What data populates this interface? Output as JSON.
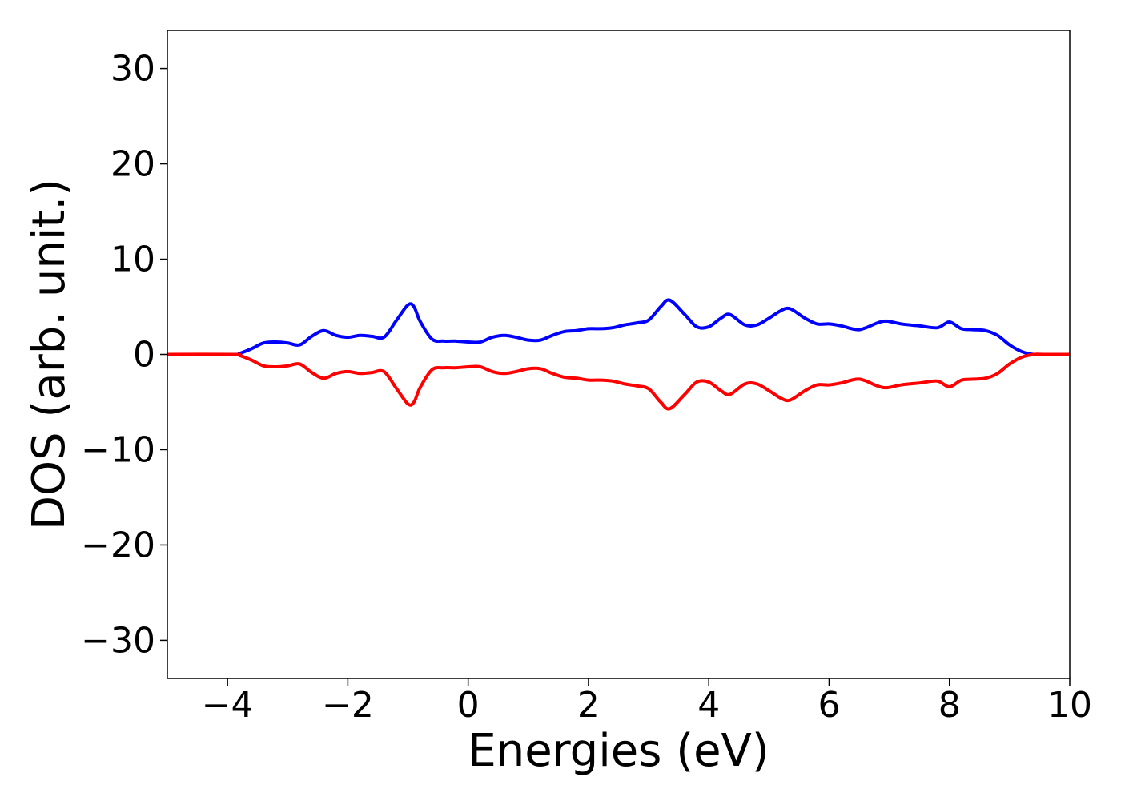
{
  "chart_data": {
    "type": "line",
    "title": "",
    "xlabel": "Energies (eV)",
    "ylabel": "DOS (arb. unit.)",
    "xlim": [
      -5,
      10
    ],
    "ylim": [
      -34,
      34
    ],
    "grid": false,
    "xticks": [
      -4,
      -2,
      0,
      2,
      4,
      6,
      8,
      10
    ],
    "yticks": [
      -30,
      -20,
      -10,
      0,
      10,
      20,
      30
    ],
    "xtick_labels": [
      "−4",
      "−2",
      "0",
      "2",
      "4",
      "6",
      "8",
      "10"
    ],
    "ytick_labels": [
      "−30",
      "−20",
      "−10",
      "0",
      "10",
      "20",
      "30"
    ],
    "series": [
      {
        "color": "#0000ff",
        "x": [
          -5.0,
          -3.9,
          -3.8,
          -3.6,
          -3.4,
          -3.2,
          -3.0,
          -2.8,
          -2.6,
          -2.4,
          -2.2,
          -2.0,
          -1.8,
          -1.6,
          -1.4,
          -1.2,
          -1.0,
          -0.9,
          -0.8,
          -0.6,
          -0.4,
          -0.2,
          0.0,
          0.2,
          0.4,
          0.6,
          0.8,
          1.0,
          1.2,
          1.4,
          1.6,
          1.8,
          2.0,
          2.2,
          2.4,
          2.6,
          2.8,
          3.0,
          3.2,
          3.35,
          3.6,
          3.8,
          4.0,
          4.2,
          4.35,
          4.6,
          4.8,
          5.0,
          5.2,
          5.35,
          5.6,
          5.8,
          6.0,
          6.2,
          6.5,
          6.8,
          6.95,
          7.2,
          7.5,
          7.8,
          8.0,
          8.2,
          8.4,
          8.6,
          8.8,
          9.0,
          9.2,
          9.4,
          9.6,
          10.0
        ],
        "values": [
          0,
          0,
          0.1,
          0.6,
          1.2,
          1.3,
          1.2,
          1.0,
          1.9,
          2.5,
          2.0,
          1.8,
          2.0,
          1.9,
          1.8,
          3.5,
          5.2,
          5.0,
          3.5,
          1.6,
          1.4,
          1.4,
          1.3,
          1.3,
          1.8,
          2.0,
          1.8,
          1.5,
          1.5,
          2.0,
          2.4,
          2.5,
          2.7,
          2.7,
          2.8,
          3.1,
          3.3,
          3.6,
          5.0,
          5.7,
          4.2,
          2.9,
          2.9,
          3.8,
          4.2,
          3.1,
          3.1,
          3.8,
          4.6,
          4.8,
          3.8,
          3.2,
          3.2,
          3.0,
          2.6,
          3.3,
          3.5,
          3.2,
          3.0,
          2.8,
          3.4,
          2.7,
          2.6,
          2.5,
          2.0,
          1.0,
          0.3,
          0.0,
          0,
          0
        ]
      },
      {
        "color": "#ff0000",
        "x": [
          -5.0,
          -3.9,
          -3.8,
          -3.6,
          -3.4,
          -3.2,
          -3.0,
          -2.8,
          -2.6,
          -2.4,
          -2.2,
          -2.0,
          -1.8,
          -1.6,
          -1.4,
          -1.2,
          -1.0,
          -0.9,
          -0.8,
          -0.6,
          -0.4,
          -0.2,
          0.0,
          0.2,
          0.4,
          0.6,
          0.8,
          1.0,
          1.2,
          1.4,
          1.6,
          1.8,
          2.0,
          2.2,
          2.4,
          2.6,
          2.8,
          3.0,
          3.2,
          3.35,
          3.6,
          3.8,
          4.0,
          4.2,
          4.35,
          4.6,
          4.8,
          5.0,
          5.2,
          5.35,
          5.6,
          5.8,
          6.0,
          6.2,
          6.5,
          6.8,
          6.95,
          7.2,
          7.5,
          7.8,
          8.0,
          8.2,
          8.4,
          8.6,
          8.8,
          9.0,
          9.2,
          9.4,
          9.6,
          10.0
        ],
        "values": [
          0,
          0,
          -0.1,
          -0.6,
          -1.2,
          -1.3,
          -1.2,
          -1.0,
          -1.9,
          -2.5,
          -2.0,
          -1.8,
          -2.0,
          -1.9,
          -1.8,
          -3.5,
          -5.2,
          -5.0,
          -3.5,
          -1.6,
          -1.4,
          -1.4,
          -1.3,
          -1.3,
          -1.8,
          -2.0,
          -1.8,
          -1.5,
          -1.5,
          -2.0,
          -2.4,
          -2.5,
          -2.7,
          -2.7,
          -2.8,
          -3.1,
          -3.3,
          -3.6,
          -5.0,
          -5.7,
          -4.2,
          -2.9,
          -2.9,
          -3.8,
          -4.2,
          -3.1,
          -3.1,
          -3.8,
          -4.6,
          -4.8,
          -3.8,
          -3.2,
          -3.2,
          -3.0,
          -2.6,
          -3.3,
          -3.5,
          -3.2,
          -3.0,
          -2.8,
          -3.4,
          -2.7,
          -2.6,
          -2.5,
          -2.0,
          -1.0,
          -0.3,
          0.0,
          0,
          0
        ]
      }
    ]
  }
}
